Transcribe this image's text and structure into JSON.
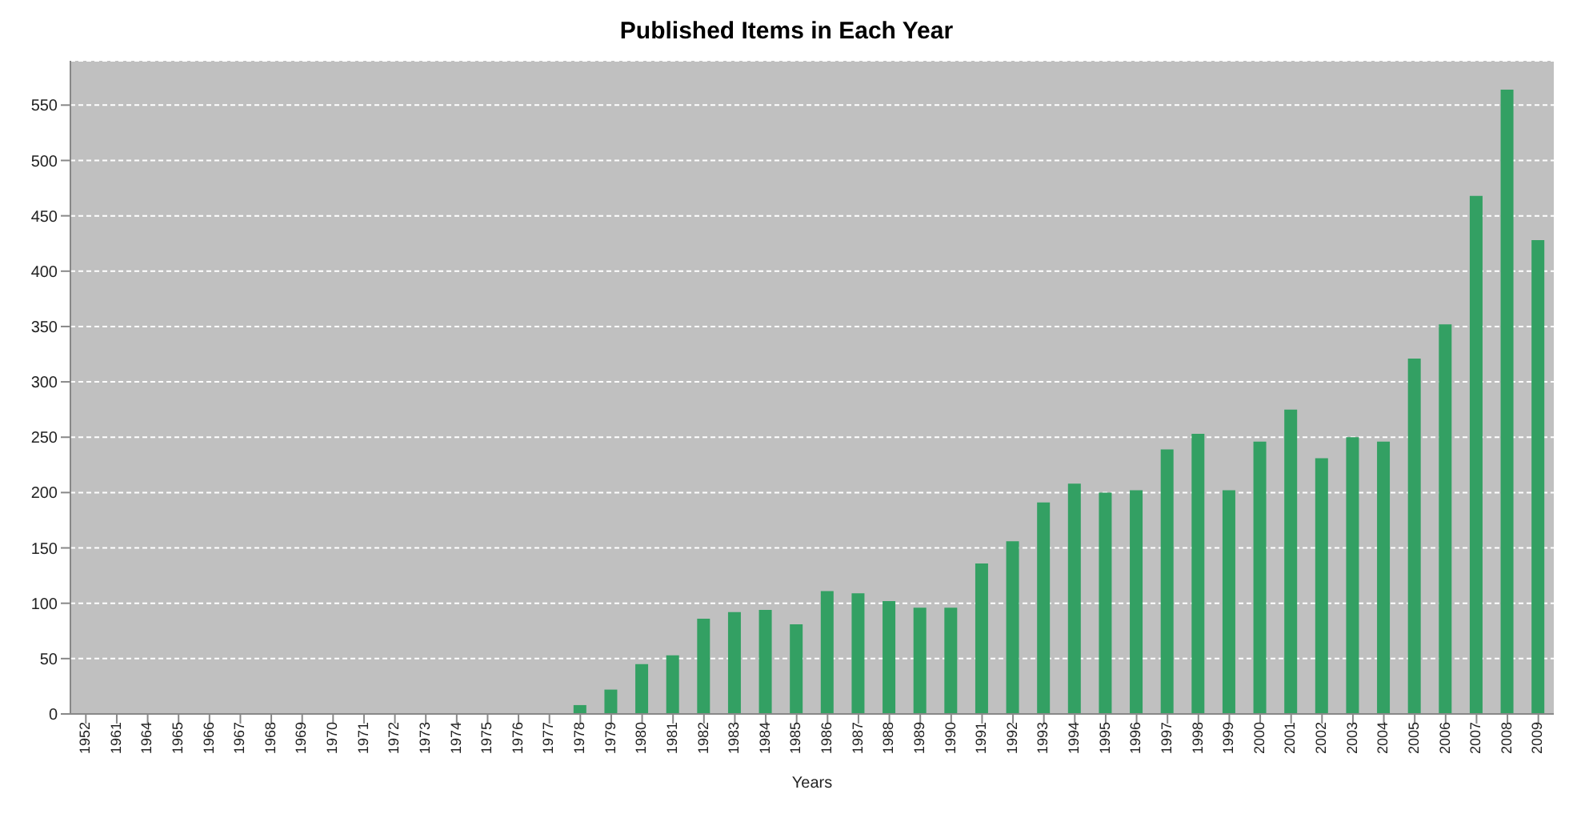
{
  "chart_data": {
    "type": "bar",
    "title": "Published Items in Each Year",
    "xlabel": "Years",
    "categories": [
      "1952",
      "1961",
      "1964",
      "1965",
      "1966",
      "1967",
      "1968",
      "1969",
      "1970",
      "1971",
      "1972",
      "1973",
      "1974",
      "1975",
      "1976",
      "1977",
      "1978",
      "1979",
      "1980",
      "1981",
      "1982",
      "1983",
      "1984",
      "1985",
      "1986",
      "1987",
      "1988",
      "1989",
      "1990",
      "1991",
      "1992",
      "1993",
      "1994",
      "1995",
      "1996",
      "1997",
      "1998",
      "1999",
      "2000",
      "2001",
      "2002",
      "2003",
      "2004",
      "2005",
      "2006",
      "2007",
      "2008",
      "2009"
    ],
    "values": [
      0,
      0,
      0,
      0,
      0,
      0,
      0,
      0,
      0,
      0,
      0,
      0,
      0,
      0,
      0,
      0,
      8,
      22,
      45,
      53,
      86,
      92,
      94,
      81,
      111,
      109,
      102,
      96,
      96,
      136,
      156,
      191,
      208,
      200,
      202,
      239,
      253,
      202,
      246,
      275,
      231,
      250,
      246,
      321,
      352,
      468,
      564,
      428
    ],
    "color": "#33a063",
    "ylim": [
      0,
      590
    ],
    "yticks": [
      0,
      50,
      100,
      150,
      200,
      250,
      300,
      350,
      400,
      450,
      500,
      550
    ],
    "grid": "y",
    "legend": false
  }
}
